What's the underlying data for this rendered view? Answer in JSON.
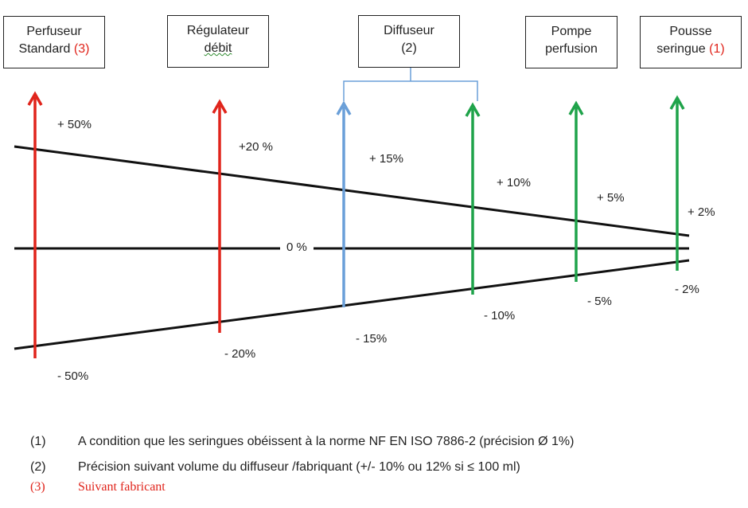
{
  "boxes": {
    "perfuseur": {
      "line1": "Perfuseur",
      "line2": "Standard",
      "ref": "(3)"
    },
    "regulateur": {
      "line1": "Régulateur",
      "line2": "débit"
    },
    "diffuseur": {
      "line1": "Diffuseur",
      "line2": "(2)"
    },
    "pompe": {
      "line1": "Pompe",
      "line2": "perfusion"
    },
    "pousse": {
      "line1": "Pousse",
      "line2": "seringue",
      "ref": "(1)"
    }
  },
  "labels": {
    "perfuseur_plus": "+ 50%",
    "perfuseur_minus": "- 50%",
    "regulateur_plus": "+20 %",
    "regulateur_minus": "- 20%",
    "diffuseur_plus": "+ 15%",
    "diffuseur_minus": "- 15%",
    "diffuseur2_plus": "+ 10%",
    "diffuseur2_minus": "- 10%",
    "pompe_plus": "+ 5%",
    "pompe_minus": "- 5%",
    "pousse_plus": "+ 2%",
    "pousse_minus": "- 2%",
    "zero": "0 %"
  },
  "colors": {
    "red": "#e0241b",
    "green": "#1fa34a",
    "blue": "#6a9fd8",
    "black": "#111111"
  },
  "notes": [
    {
      "num": "(1)",
      "text": "A condition que les seringues obéissent à la norme NF EN ISO 7886-2 (précision Ø 1%)"
    },
    {
      "num": "(2)",
      "text": "Précision suivant volume du diffuseur /fabriquant  (+/- 10%  ou 12%  si  ≤ 100 ml)"
    },
    {
      "num": "(3)",
      "text": "Suivant fabricant"
    }
  ]
}
